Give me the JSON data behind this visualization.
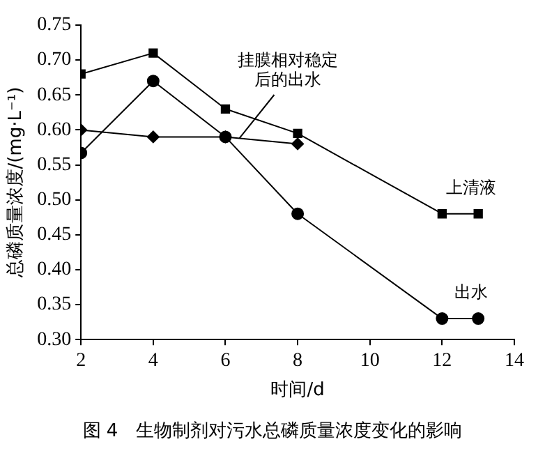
{
  "chart_data": {
    "type": "line",
    "xlabel": "时间/d",
    "ylabel": "总磷质量浓度/(mg·L⁻¹)",
    "xlim": [
      2,
      14
    ],
    "xticks": [
      2,
      4,
      6,
      8,
      10,
      12,
      14
    ],
    "ylim": [
      0.3,
      0.75
    ],
    "yticks": [
      {
        "value": 0.3,
        "label": "0.30"
      },
      {
        "value": 0.35,
        "label": "0.35"
      },
      {
        "value": 0.4,
        "label": "0.40"
      },
      {
        "value": 0.45,
        "label": "0.45"
      },
      {
        "value": 0.5,
        "label": "0.50"
      },
      {
        "value": 0.55,
        "label": "0.55"
      },
      {
        "value": 0.6,
        "label": "0.60"
      },
      {
        "value": 0.65,
        "label": "0.65"
      },
      {
        "value": 0.7,
        "label": "0.70"
      },
      {
        "value": 0.75,
        "label": "0.75"
      }
    ],
    "grid": false,
    "legend": false,
    "line_style": "solid",
    "series": [
      {
        "name": "上清液",
        "color": "#000000",
        "marker": "square",
        "x": [
          2,
          4,
          6,
          8,
          12,
          13
        ],
        "values": [
          0.68,
          0.71,
          0.63,
          0.595,
          0.48,
          0.48
        ]
      },
      {
        "name": "出水",
        "color": "#000000",
        "marker": "circle",
        "x": [
          2,
          4,
          6,
          8,
          12,
          13
        ],
        "values": [
          0.567,
          0.67,
          0.59,
          0.48,
          0.33,
          0.33
        ]
      },
      {
        "name": "挂膜相对稳定后的出水",
        "color": "#000000",
        "marker": "diamond",
        "x": [
          2,
          4,
          6,
          8
        ],
        "values": [
          0.6,
          0.59,
          0.59,
          0.58
        ]
      }
    ],
    "annotations": [
      "图 4　生物制剂对污水总磷质量浓度变化的影响"
    ]
  }
}
